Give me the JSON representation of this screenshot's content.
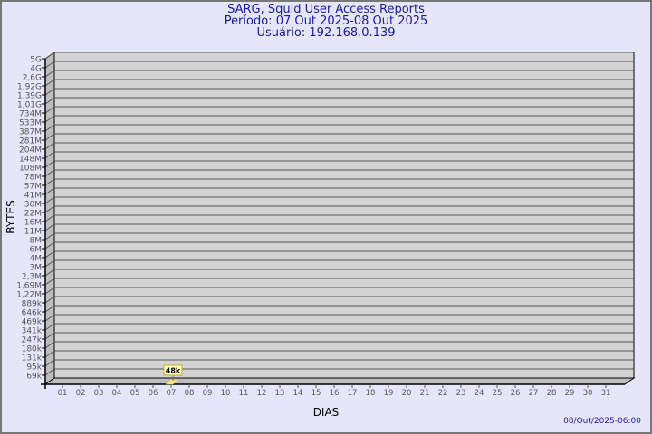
{
  "header": {
    "title": "SARG, Squid User Access Reports",
    "period": "Período: 07 Out 2025-08 Out 2025",
    "user": "Usuário: 192.168.0.139"
  },
  "footer": {
    "timestamp": "08/Out/2025-06:00"
  },
  "colors": {
    "background": "#e6e6fa",
    "plot": "#d3d3d3",
    "bar": "#ffe680",
    "text": "#1a1aa0"
  },
  "chart_data": {
    "type": "bar",
    "xlabel": "DIAS",
    "ylabel": "BYTES",
    "categories": [
      "01",
      "02",
      "03",
      "04",
      "05",
      "06",
      "07",
      "08",
      "09",
      "10",
      "11",
      "12",
      "13",
      "14",
      "15",
      "16",
      "17",
      "18",
      "19",
      "20",
      "21",
      "22",
      "23",
      "24",
      "25",
      "26",
      "27",
      "28",
      "29",
      "30",
      "31"
    ],
    "y_ticks": [
      "5G",
      "4G",
      "2,6G",
      "1,92G",
      "1,39G",
      "1,01G",
      "734M",
      "533M",
      "387M",
      "281M",
      "204M",
      "148M",
      "108M",
      "78M",
      "57M",
      "41M",
      "30M",
      "22M",
      "16M",
      "11M",
      "8M",
      "6M",
      "4M",
      "3M",
      "2,3M",
      "1,69M",
      "1,22M",
      "889k",
      "646k",
      "469k",
      "341k",
      "247k",
      "180k",
      "131k",
      "95k",
      "69k"
    ],
    "series": [
      {
        "points": [
          {
            "category": "07",
            "value": 48000,
            "label": "48k"
          }
        ]
      }
    ],
    "grid": true,
    "scale": "log"
  }
}
